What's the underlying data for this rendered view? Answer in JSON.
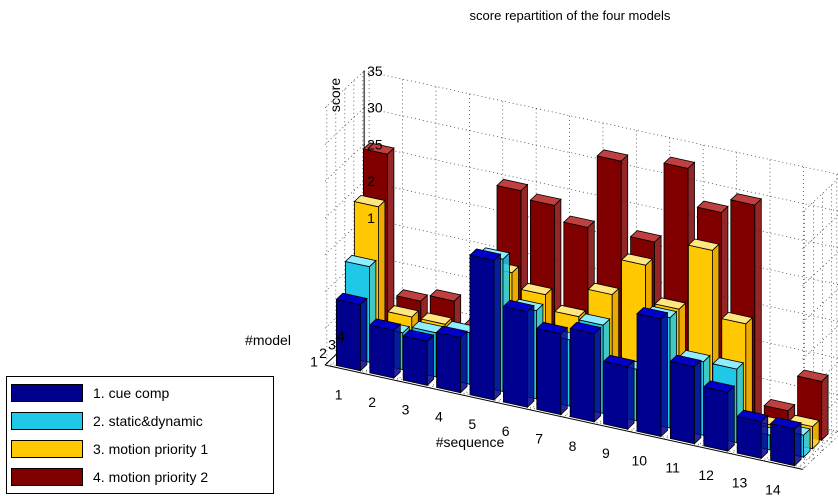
{
  "chart_data": {
    "type": "bar",
    "title": "score repartition of the four models",
    "xlabel": "#sequence",
    "ylabel": "#model",
    "zlabel": "score",
    "categories": [
      "1",
      "2",
      "3",
      "4",
      "5",
      "6",
      "7",
      "8",
      "9",
      "10",
      "11",
      "12",
      "13",
      "14"
    ],
    "model_ticks": [
      "1",
      "2",
      "3",
      "4"
    ],
    "score_ticks": [
      "35",
      "30",
      "25",
      "2",
      "1"
    ],
    "zlim": [
      0,
      35
    ],
    "grid": true,
    "legend_position": "bottom-left",
    "series": [
      {
        "name": "1. cue comp",
        "color": "#00008f",
        "top": "#0000c8",
        "values": [
          9,
          6.5,
          6,
          7.5,
          19,
          13,
          11,
          12,
          8.5,
          16,
          10.5,
          8,
          5,
          5
        ]
      },
      {
        "name": "2. static&dynamic",
        "color": "#20c8e8",
        "top": "#90ecff",
        "values": [
          13,
          5,
          6,
          7,
          18,
          12,
          9,
          12,
          7,
          15,
          10,
          10,
          2,
          3
        ]
      },
      {
        "name": "3. motion priority 1",
        "color": "#ffc800",
        "top": "#ffe680",
        "values": [
          20,
          6,
          6,
          5,
          15,
          13,
          11,
          15,
          20,
          15,
          24,
          15,
          2,
          3
        ]
      },
      {
        "name": "4. motion priority 2",
        "color": "#800000",
        "top": "#c04040",
        "values": [
          26,
          7,
          8,
          5,
          25,
          24,
          22,
          32,
          22,
          33,
          28,
          30,
          3,
          8
        ]
      }
    ]
  }
}
